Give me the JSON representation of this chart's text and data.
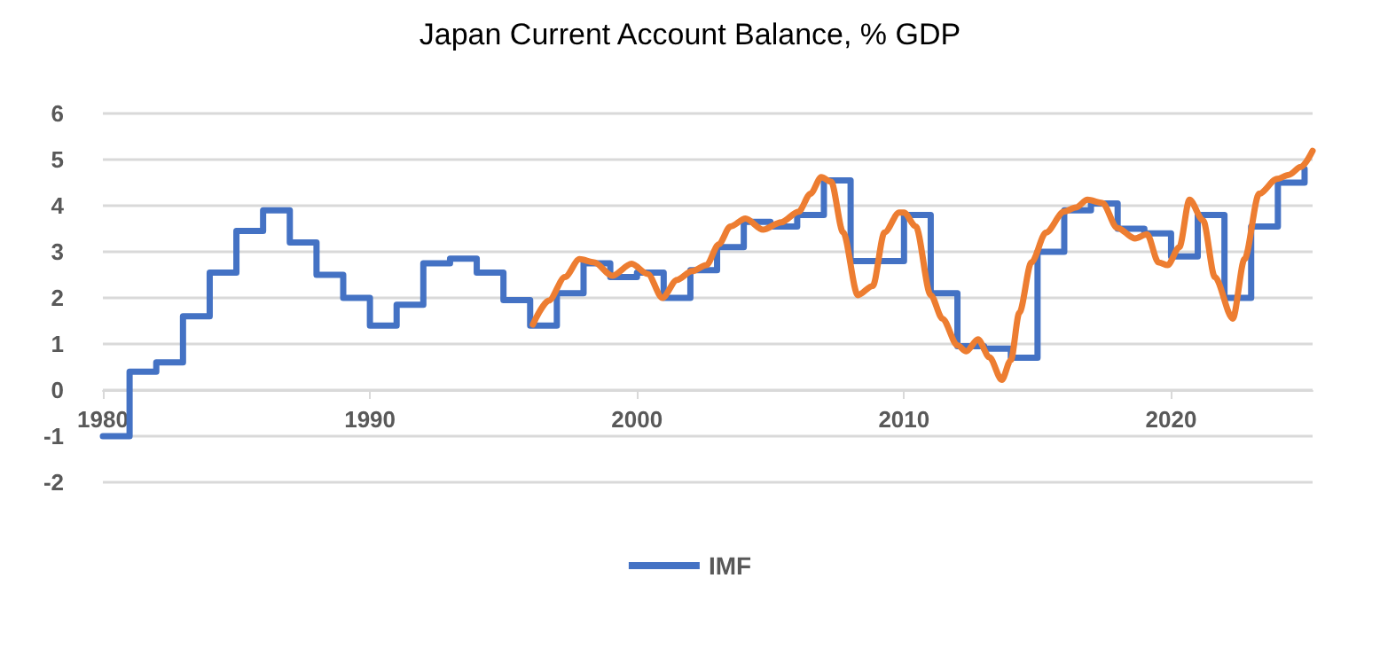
{
  "chart_data": {
    "type": "line",
    "title": "Japan Current Account Balance, % GDP",
    "xlim": [
      1980,
      2025.3
    ],
    "xticks": [
      1980,
      1990,
      2000,
      2010,
      2020
    ],
    "ylim": [
      -2,
      6
    ],
    "yticks": [
      -2,
      -1,
      0,
      1,
      2,
      3,
      4,
      5,
      6
    ],
    "grid": "y",
    "legend": "bottom",
    "marker": "none",
    "line_style": "solid",
    "series": [
      {
        "name": "IMF",
        "type": "step",
        "color": "#4472c4",
        "x": [
          1980,
          1981,
          1982,
          1983,
          1984,
          1985,
          1986,
          1987,
          1988,
          1989,
          1990,
          1991,
          1992,
          1993,
          1994,
          1995,
          1996,
          1997,
          1998,
          1999,
          2000,
          2001,
          2002,
          2003,
          2004,
          2005,
          2006,
          2007,
          2008,
          2009,
          2010,
          2011,
          2012,
          2013,
          2014,
          2015,
          2016,
          2017,
          2018,
          2019,
          2020,
          2021,
          2022,
          2023,
          2024,
          2025
        ],
        "values": [
          -1.0,
          0.4,
          0.6,
          1.6,
          2.55,
          3.45,
          3.9,
          3.2,
          2.5,
          2.0,
          1.4,
          1.85,
          2.75,
          2.85,
          2.55,
          1.95,
          1.4,
          2.1,
          2.75,
          2.45,
          2.55,
          2.0,
          2.6,
          3.1,
          3.65,
          3.55,
          3.8,
          4.55,
          2.8,
          2.8,
          3.8,
          2.1,
          0.95,
          0.9,
          0.7,
          3.0,
          3.9,
          4.05,
          3.5,
          3.4,
          2.9,
          3.8,
          2.0,
          3.55,
          4.5,
          4.8
        ]
      },
      {
        "color": "#ed7d31",
        "x": [
          1996.1,
          1996.7,
          1997.3,
          1997.85,
          1998.4,
          1999.07,
          1999.8,
          2000.4,
          2000.95,
          2001.5,
          2002.06,
          2002.6,
          2003.06,
          2003.5,
          2004.06,
          2004.72,
          2005.4,
          2006.05,
          2006.5,
          2006.9,
          2007.27,
          2007.72,
          2008.27,
          2008.83,
          2009.27,
          2009.82,
          2010.0,
          2010.44,
          2011.0,
          2011.44,
          2012.0,
          2012.33,
          2012.77,
          2013.2,
          2013.66,
          2014.0,
          2014.32,
          2014.77,
          2015.32,
          2015.99,
          2016.43,
          2016.87,
          2017.43,
          2017.98,
          2018.65,
          2019.1,
          2019.53,
          2019.87,
          2020.31,
          2020.69,
          2021.2,
          2021.64,
          2022.31,
          2022.75,
          2023.3,
          2023.97,
          2024.41,
          2024.86,
          2025.3
        ],
        "values": [
          1.42,
          1.94,
          2.45,
          2.84,
          2.77,
          2.48,
          2.74,
          2.52,
          2.0,
          2.39,
          2.58,
          2.71,
          3.16,
          3.55,
          3.72,
          3.48,
          3.64,
          3.87,
          4.26,
          4.62,
          4.52,
          3.42,
          2.06,
          2.26,
          3.42,
          3.85,
          3.85,
          3.55,
          2.06,
          1.55,
          0.97,
          0.84,
          1.1,
          0.71,
          0.22,
          0.65,
          1.68,
          2.77,
          3.42,
          3.87,
          3.96,
          4.13,
          4.06,
          3.52,
          3.29,
          3.38,
          2.77,
          2.71,
          3.1,
          4.13,
          3.68,
          2.45,
          1.55,
          2.84,
          4.26,
          4.58,
          4.67,
          4.84,
          5.19
        ]
      }
    ]
  }
}
